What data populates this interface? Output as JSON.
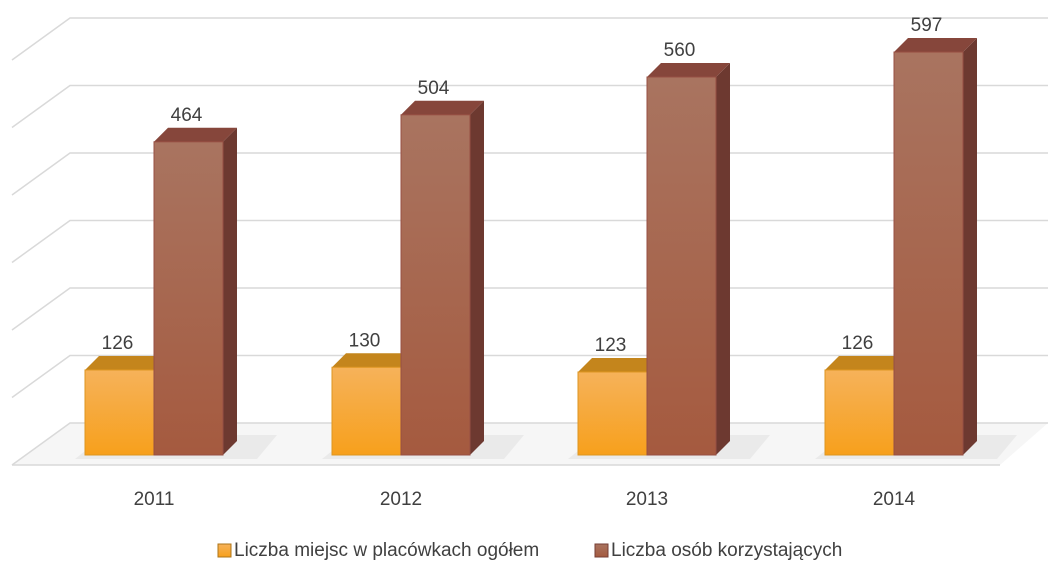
{
  "chart_data": {
    "type": "bar3d",
    "categories": [
      "2011",
      "2012",
      "2013",
      "2014"
    ],
    "series": [
      {
        "name": "Liczba miejsc w placówkach ogółem",
        "color": "#f5a623",
        "values": [
          126,
          130,
          123,
          126
        ]
      },
      {
        "name": "Liczba osób korzystających",
        "color": "#a8584a",
        "values": [
          464,
          504,
          560,
          597
        ]
      }
    ],
    "ylim": [
      0,
      600
    ],
    "yticks": [
      0,
      100,
      200,
      300,
      400,
      500,
      600
    ],
    "grid": true
  }
}
